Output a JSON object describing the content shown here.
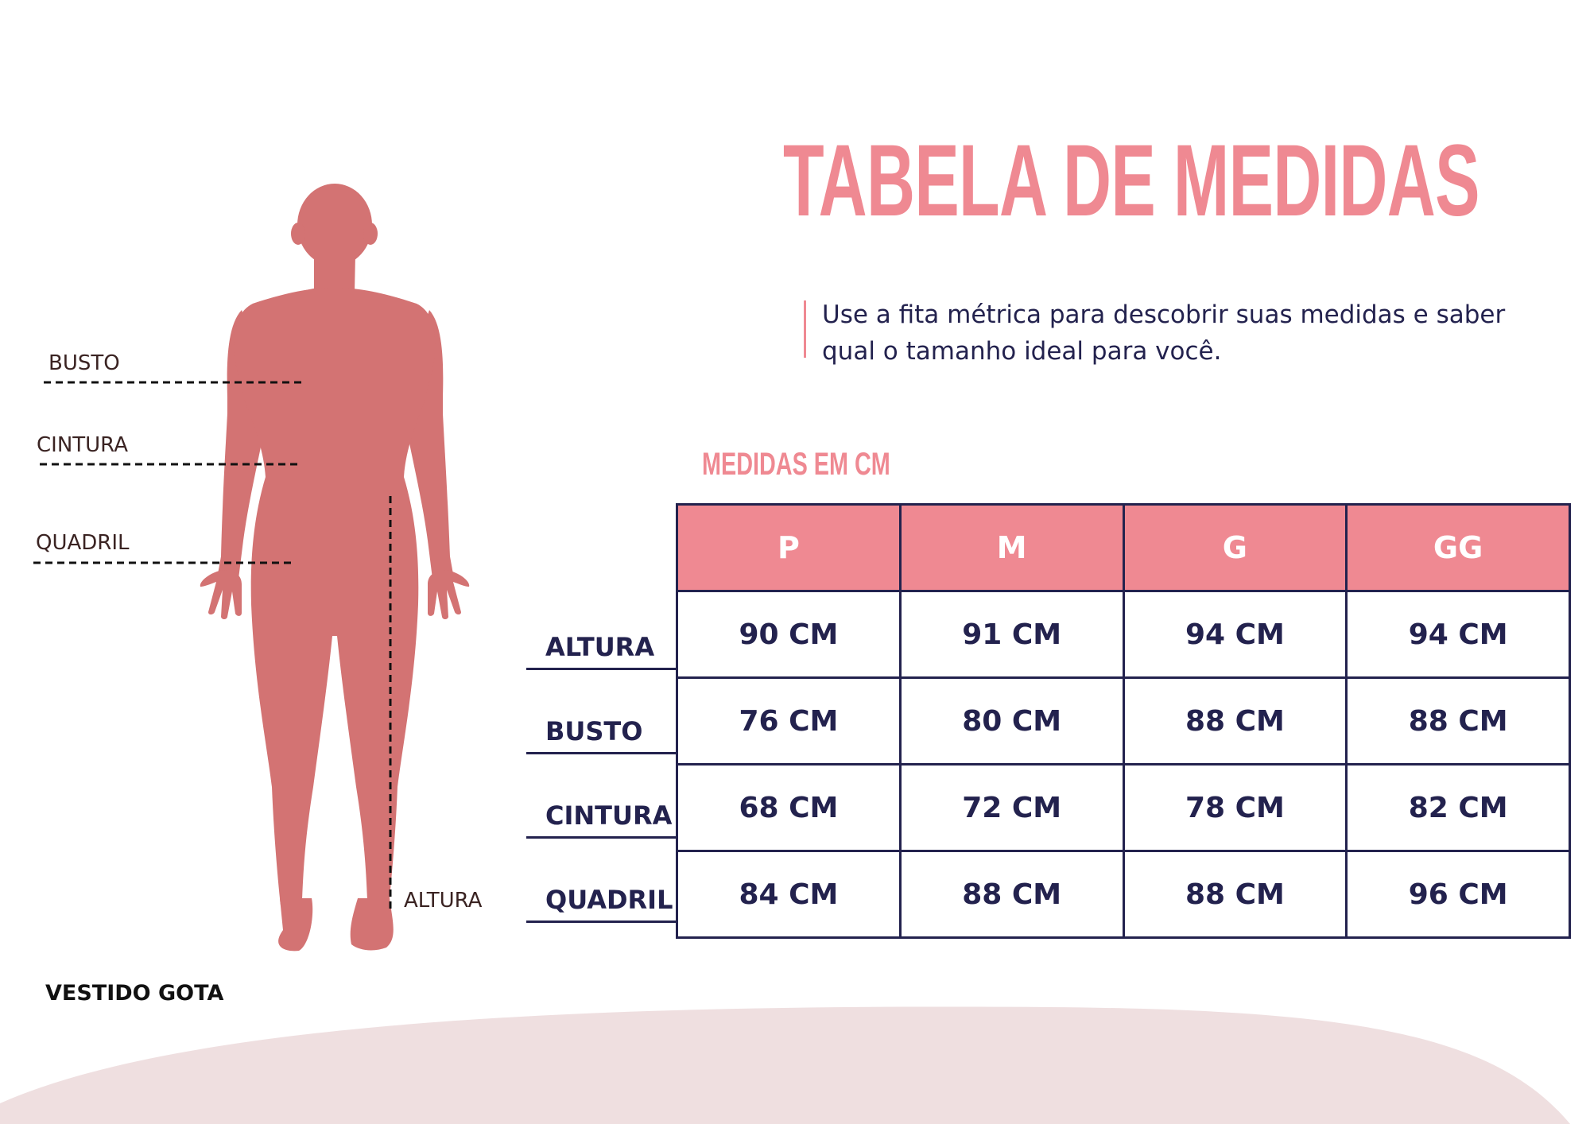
{
  "title": "TABELA DE MEDIDAS",
  "intro": "Use a fita métrica para descobrir suas medidas e saber qual o tamanho ideal para você.",
  "subtitle": "MEDIDAS EM CM",
  "product_name": "VESTIDO GOTA",
  "figure_labels": {
    "busto": "BUSTO",
    "cintura": "CINTURA",
    "quadril": "QUADRIL",
    "altura": "ALTURA"
  },
  "table": {
    "columns": [
      "P",
      "M",
      "G",
      "GG"
    ],
    "rows": [
      {
        "label": "ALTURA",
        "values": [
          "90 CM",
          "91 CM",
          "94 CM",
          "94 CM"
        ]
      },
      {
        "label": "BUSTO",
        "values": [
          "76 CM",
          "80 CM",
          "88 CM",
          "88 CM"
        ]
      },
      {
        "label": "CINTURA",
        "values": [
          "68 CM",
          "72 CM",
          "78 CM",
          "82 CM"
        ]
      },
      {
        "label": "QUADRIL",
        "values": [
          "84 CM",
          "88 CM",
          "88 CM",
          "96 CM"
        ]
      }
    ]
  },
  "colors": {
    "accent_pink": "#ef8992",
    "figure": "#d37373",
    "navy": "#23224e",
    "wave": "#efdfe0"
  }
}
